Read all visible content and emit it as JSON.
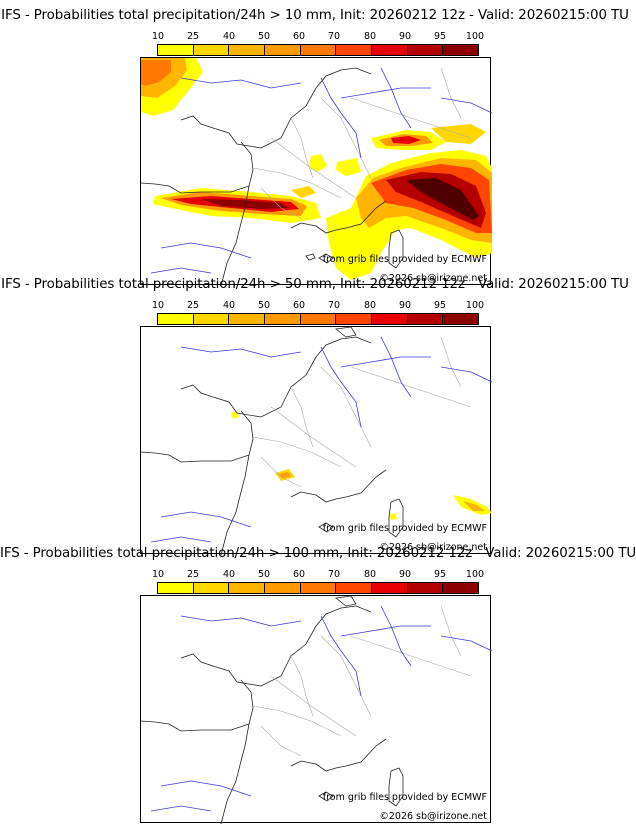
{
  "legend": {
    "ticks": [
      "10",
      "25",
      "40",
      "50",
      "60",
      "70",
      "80",
      "90",
      "95",
      "100"
    ],
    "colors": [
      "#ffff00",
      "#ffd700",
      "#ffb400",
      "#ff9b00",
      "#ff7800",
      "#ff4600",
      "#e60000",
      "#b40000",
      "#8c0000",
      "#500000"
    ]
  },
  "panels": [
    {
      "title": "IFS - Probabilities total precipitation/24h > 10 mm, Init: 20260212 12z - Valid: 20260215:00 TU",
      "source_credit": "from grib files provided by ECMWF",
      "copyright": "©2026 sb@irizone.net"
    },
    {
      "title": "IFS - Probabilities total precipitation/24h > 50 mm, Init: 20260212 12z - Valid: 20260215:00 TU",
      "source_credit": "from grib files provided by ECMWF",
      "copyright": "©2026 sb@irizone.net"
    },
    {
      "title": "IFS - Probabilities total precipitation/24h > 100 mm, Init: 20260212 12z - Valid: 20260215:00 TU",
      "source_credit": "from grib files provided by ECMWF",
      "copyright": "©2026 sb@irizone.net"
    }
  ]
}
